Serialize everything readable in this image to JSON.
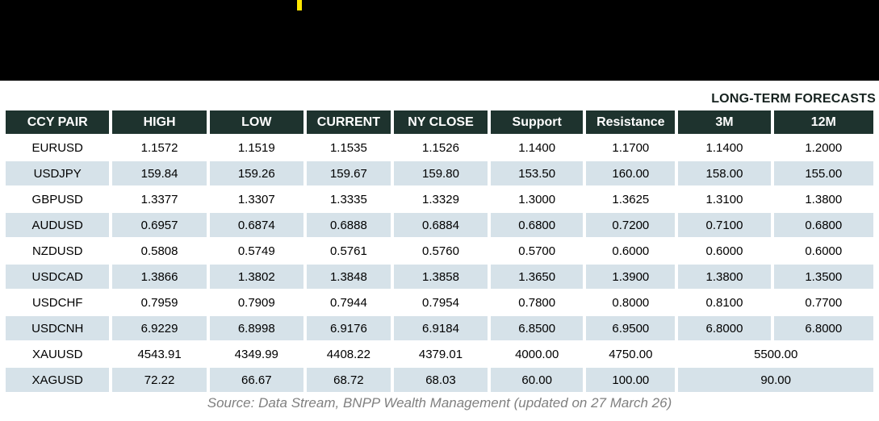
{
  "header_bar": {
    "background": "#000000",
    "accent_mark_color": "#FFE600"
  },
  "caption": "LONG-TERM FORECASTS",
  "table": {
    "columns": [
      "CCY PAIR",
      "HIGH",
      "LOW",
      "CURRENT",
      "NY CLOSE",
      "Support",
      "Resistance",
      "3M",
      "12M"
    ],
    "rows": [
      {
        "cells": [
          "EURUSD",
          "1.1572",
          "1.1519",
          "1.1535",
          "1.1526",
          "1.1400",
          "1.1700",
          "1.1400",
          "1.2000"
        ]
      },
      {
        "cells": [
          "USDJPY",
          "159.84",
          "159.26",
          "159.67",
          "159.80",
          "153.50",
          "160.00",
          "158.00",
          "155.00"
        ]
      },
      {
        "cells": [
          "GBPUSD",
          "1.3377",
          "1.3307",
          "1.3335",
          "1.3329",
          "1.3000",
          "1.3625",
          "1.3100",
          "1.3800"
        ]
      },
      {
        "cells": [
          "AUDUSD",
          "0.6957",
          "0.6874",
          "0.6888",
          "0.6884",
          "0.6800",
          "0.7200",
          "0.7100",
          "0.6800"
        ]
      },
      {
        "cells": [
          "NZDUSD",
          "0.5808",
          "0.5749",
          "0.5761",
          "0.5760",
          "0.5700",
          "0.6000",
          "0.6000",
          "0.6000"
        ]
      },
      {
        "cells": [
          "USDCAD",
          "1.3866",
          "1.3802",
          "1.3848",
          "1.3858",
          "1.3650",
          "1.3900",
          "1.3800",
          "1.3500"
        ]
      },
      {
        "cells": [
          "USDCHF",
          "0.7959",
          "0.7909",
          "0.7944",
          "0.7954",
          "0.7800",
          "0.8000",
          "0.8100",
          "0.7700"
        ]
      },
      {
        "cells": [
          "USDCNH",
          "6.9229",
          "6.8998",
          "6.9176",
          "6.9184",
          "6.8500",
          "6.9500",
          "6.8000",
          "6.8000"
        ]
      },
      {
        "cells": [
          "XAUUSD",
          "4543.91",
          "4349.99",
          "4408.22",
          "4379.01",
          "4000.00",
          "4750.00",
          "5500.00"
        ],
        "merge_last": true
      },
      {
        "cells": [
          "XAGUSD",
          "72.22",
          "66.67",
          "68.72",
          "68.03",
          "60.00",
          "100.00",
          "90.00"
        ],
        "merge_last": true
      }
    ]
  },
  "source_note": "Source: Data Stream, BNPP Wealth Management (updated on 27 March 26)",
  "colors": {
    "table_header_bg": "#1E332E",
    "table_header_text": "#FFFFFF",
    "row_bg": "#FFFFFF",
    "row_alt_bg": "#D6E2E9",
    "caption_text": "#16221F",
    "source_text": "#808080"
  }
}
